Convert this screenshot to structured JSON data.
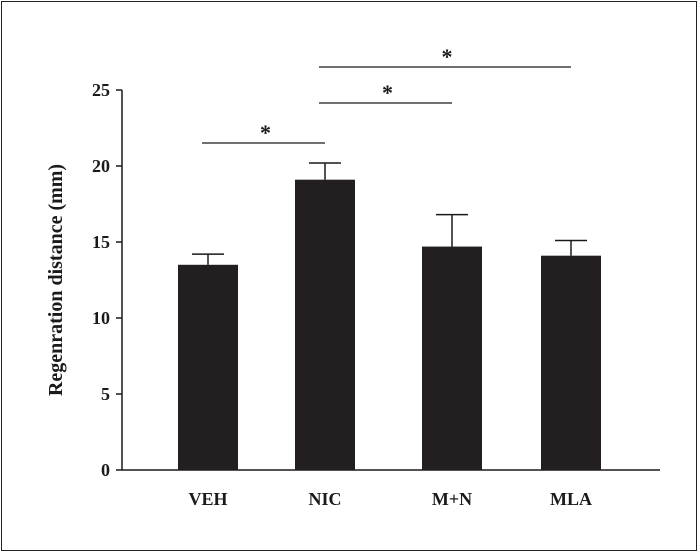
{
  "chart_data": {
    "type": "bar",
    "categories": [
      "VEH",
      "NIC",
      "M+N",
      "MLA"
    ],
    "values": [
      13.5,
      19.1,
      14.7,
      14.1
    ],
    "error_upper": [
      14.2,
      20.2,
      16.8,
      15.1
    ],
    "ylabel": "Regenration distance (mm)",
    "xlabel": "",
    "title": "",
    "ylim": [
      0,
      25
    ],
    "yticks": [
      0,
      5,
      10,
      15,
      20,
      25
    ],
    "bar_color": "#231f20",
    "grid": false,
    "legend": "none",
    "significance": [
      {
        "from": "VEH",
        "to": "NIC",
        "label": "*"
      },
      {
        "from": "NIC",
        "to": "M+N",
        "label": "*"
      },
      {
        "from": "NIC",
        "to": "MLA",
        "label": "*"
      }
    ]
  }
}
